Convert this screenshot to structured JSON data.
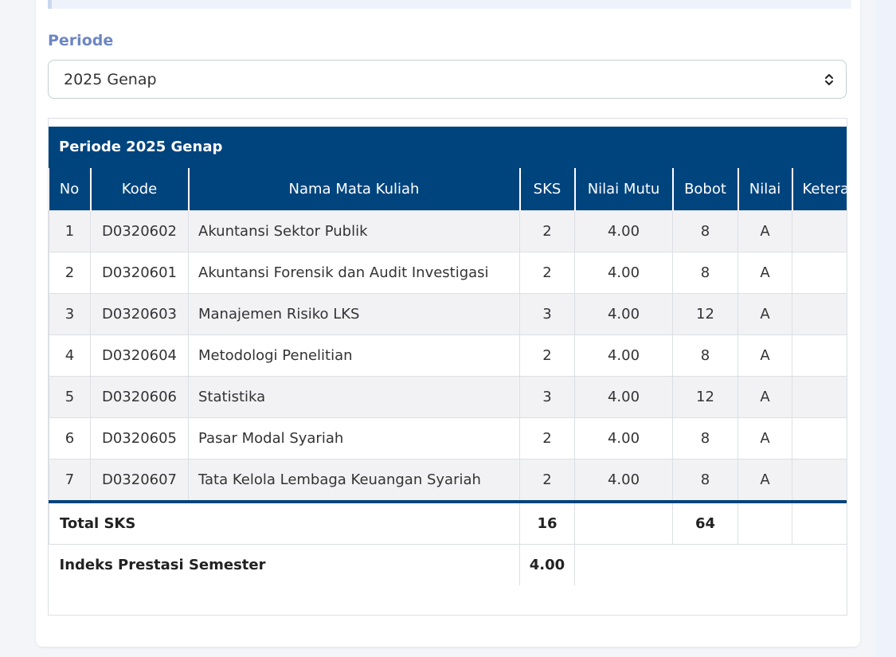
{
  "periode": {
    "label": "Periode",
    "selected": "2025 Genap"
  },
  "table": {
    "title": "Periode 2025 Genap",
    "headers": {
      "no": "No",
      "kode": "Kode",
      "nama": "Nama Mata Kuliah",
      "sks": "SKS",
      "nilai_mutu": "Nilai Mutu",
      "bobot": "Bobot",
      "nilai": "Nilai",
      "keterangan": "Keterangan"
    },
    "rows": [
      {
        "no": "1",
        "kode": "D0320602",
        "nama": "Akuntansi Sektor Publik",
        "sks": "2",
        "nilai_mutu": "4.00",
        "bobot": "8",
        "nilai": "A",
        "keterangan": ""
      },
      {
        "no": "2",
        "kode": "D0320601",
        "nama": "Akuntansi Forensik dan Audit Investigasi",
        "sks": "2",
        "nilai_mutu": "4.00",
        "bobot": "8",
        "nilai": "A",
        "keterangan": ""
      },
      {
        "no": "3",
        "kode": "D0320603",
        "nama": "Manajemen Risiko LKS",
        "sks": "3",
        "nilai_mutu": "4.00",
        "bobot": "12",
        "nilai": "A",
        "keterangan": ""
      },
      {
        "no": "4",
        "kode": "D0320604",
        "nama": "Metodologi Penelitian",
        "sks": "2",
        "nilai_mutu": "4.00",
        "bobot": "8",
        "nilai": "A",
        "keterangan": ""
      },
      {
        "no": "5",
        "kode": "D0320606",
        "nama": "Statistika",
        "sks": "3",
        "nilai_mutu": "4.00",
        "bobot": "12",
        "nilai": "A",
        "keterangan": ""
      },
      {
        "no": "6",
        "kode": "D0320605",
        "nama": "Pasar Modal Syariah",
        "sks": "2",
        "nilai_mutu": "4.00",
        "bobot": "8",
        "nilai": "A",
        "keterangan": ""
      },
      {
        "no": "7",
        "kode": "D0320607",
        "nama": "Tata Kelola Lembaga Keuangan Syariah",
        "sks": "2",
        "nilai_mutu": "4.00",
        "bobot": "8",
        "nilai": "A",
        "keterangan": ""
      }
    ],
    "footer": {
      "total_label": "Total SKS",
      "total_sks": "16",
      "total_bobot": "64",
      "ips_label": "Indeks Prestasi Semester",
      "ips_value": "4.00"
    }
  },
  "colors": {
    "header_bg": "#00447e",
    "label_color": "#6d86c4"
  },
  "icons": {
    "select": "chevron-up-down-icon"
  }
}
